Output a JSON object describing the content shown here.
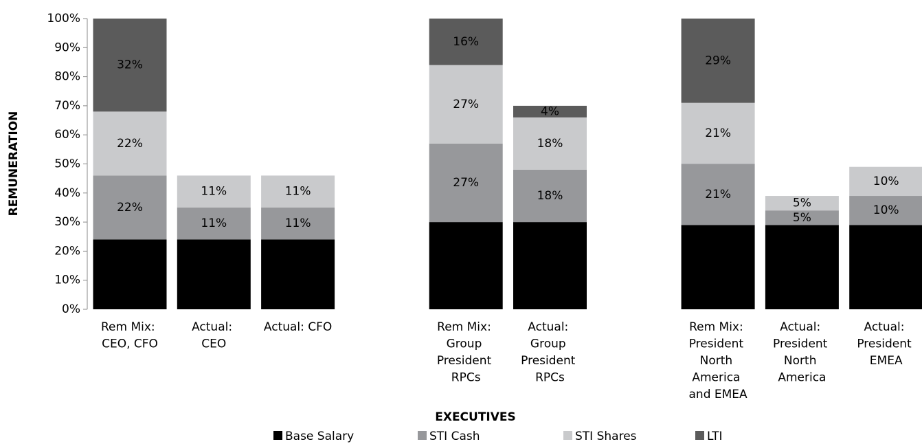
{
  "chart_data": {
    "type": "stacked-bar",
    "x_label": "EXECUTIVES",
    "y_label": "REMUNERATION",
    "categories": [
      "Rem Mix: CEO, CFO",
      "Actual: CEO",
      "Actual: CFO",
      null,
      "Rem Mix: Group President RPCs",
      "Actual: Group President RPCs",
      null,
      "Rem Mix: President North America and EMEA",
      "Actual: President North America",
      "Actual: President EMEA"
    ],
    "series": [
      {
        "name": "Base Salary",
        "color": "#000000",
        "values": [
          24,
          24,
          24,
          null,
          30,
          30,
          null,
          29,
          29,
          29
        ],
        "value_labels": [
          "24%",
          "24%",
          "24%",
          null,
          "30%",
          "30%",
          null,
          "29%",
          "29%",
          "29%"
        ]
      },
      {
        "name": "STI Cash",
        "color": "#97989b",
        "values": [
          22,
          11,
          11,
          null,
          27,
          18,
          null,
          21,
          5,
          10
        ],
        "value_labels": [
          "22%",
          "11%",
          "11%",
          null,
          "27%",
          "18%",
          null,
          "21%",
          "5%",
          "10%"
        ]
      },
      {
        "name": "STI Shares",
        "color": "#c9cacc",
        "values": [
          22,
          11,
          11,
          null,
          27,
          18,
          null,
          21,
          5,
          10
        ],
        "value_labels": [
          "22%",
          "11%",
          "11%",
          null,
          "27%",
          "18%",
          null,
          "21%",
          "5%",
          "10%"
        ]
      },
      {
        "name": "LTI",
        "color": "#5b5b5b",
        "values": [
          32,
          null,
          null,
          null,
          16,
          4,
          null,
          29,
          null,
          null
        ],
        "value_labels": [
          "32%",
          null,
          null,
          null,
          "16%",
          "4%",
          null,
          "29%",
          null,
          null
        ]
      }
    ],
    "ylim": [
      0,
      100
    ],
    "yticks": [
      {
        "value": 0,
        "label": "0%"
      },
      {
        "value": 10,
        "label": "10%"
      },
      {
        "value": 20,
        "label": "20%"
      },
      {
        "value": 30,
        "label": "30%"
      },
      {
        "value": 40,
        "label": "40%"
      },
      {
        "value": 50,
        "label": "50%"
      },
      {
        "value": 60,
        "label": "60%"
      },
      {
        "value": 70,
        "label": "70%"
      },
      {
        "value": 80,
        "label": "80%"
      },
      {
        "value": 90,
        "label": "90%"
      },
      {
        "value": 100,
        "label": "100%"
      }
    ],
    "legend": "bottom"
  }
}
